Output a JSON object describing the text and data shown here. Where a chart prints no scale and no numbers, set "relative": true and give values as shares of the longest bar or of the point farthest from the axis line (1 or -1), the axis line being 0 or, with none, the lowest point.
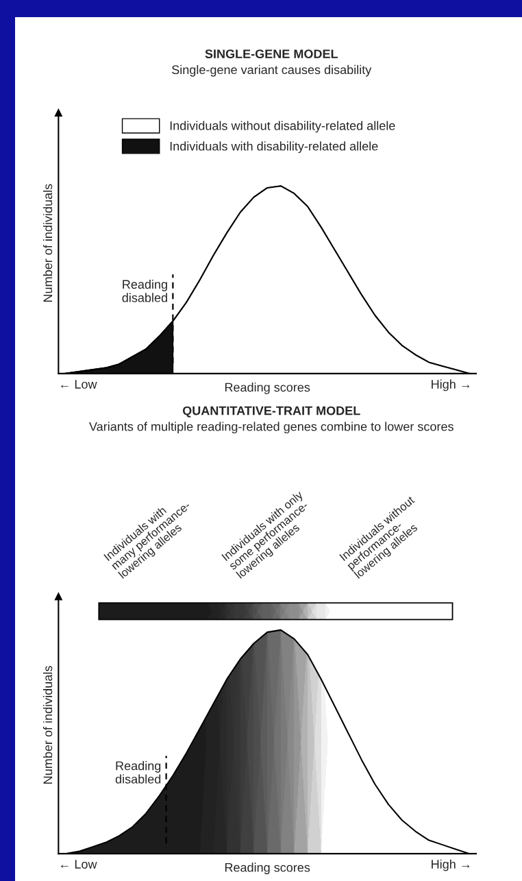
{
  "chart_data": [
    {
      "type": "area",
      "title": "SINGLE-GENE MODEL",
      "subtitle": "Single-gene variant causes disability",
      "ylabel": "Number of individuals",
      "xlabel": "Reading scores",
      "relative": true,
      "legend": "top",
      "categories": [
        null,
        null,
        null,
        null,
        null,
        null,
        null,
        null,
        null,
        null,
        null,
        null,
        null,
        null,
        null,
        null,
        null,
        null,
        null,
        null,
        null,
        null,
        null,
        null,
        null,
        null,
        null,
        null,
        null,
        null,
        null
      ],
      "series": [
        {
          "name": "Individuals without disability-related allele",
          "color": "#ffffff",
          "values": [
            0.0,
            0.01,
            0.02,
            0.03,
            0.05,
            0.09,
            0.13,
            0.2,
            0.28,
            0.38,
            0.5,
            0.63,
            0.75,
            0.86,
            0.94,
            0.99,
            1.0,
            0.96,
            0.89,
            0.78,
            0.66,
            0.54,
            0.42,
            0.31,
            0.22,
            0.15,
            0.1,
            0.06,
            0.04,
            0.02,
            0.0
          ]
        },
        {
          "name": "Individuals with disability-related allele",
          "color": "#111111",
          "values": [
            0.0,
            0.01,
            0.02,
            0.03,
            0.05,
            0.09,
            0.13,
            0.2,
            0.28,
            null,
            null,
            null,
            null,
            null,
            null,
            null,
            null,
            null,
            null,
            null,
            null,
            null,
            null,
            null,
            null,
            null,
            null,
            null,
            null,
            null,
            null
          ]
        }
      ],
      "annotations": [
        "← Low",
        "High →",
        "Reading\ndisabled"
      ]
    },
    {
      "type": "area",
      "title": "QUANTITATIVE-TRAIT MODEL",
      "subtitle": "Variants of multiple reading-related genes combine to lower scores",
      "ylabel": "Number of individuals",
      "xlabel": "Reading scores",
      "relative": true,
      "categories": [
        null,
        null,
        null,
        null,
        null,
        null,
        null,
        null,
        null,
        null,
        null,
        null,
        null,
        null,
        null,
        null,
        null,
        null,
        null,
        null,
        null,
        null,
        null,
        null,
        null,
        null,
        null,
        null,
        null,
        null,
        null
      ],
      "series": [
        {
          "type": "line",
          "color": "#000000",
          "colors": [
            "#111111",
            "#111111",
            "#111111",
            "#111111",
            "#111111",
            "#111111",
            "#111111",
            "#111111",
            "#111111",
            "#111111",
            "#111111",
            "#161616",
            "#1c1c1c",
            "#262626",
            "#333333",
            "#444444",
            "#555555",
            "#666666",
            "#888888",
            "#aaaaaa",
            "#dddddd",
            "#ffffff",
            "#ffffff",
            "#ffffff",
            "#ffffff",
            "#ffffff",
            "#ffffff",
            "#ffffff",
            "#ffffff",
            "#ffffff",
            "#ffffff"
          ],
          "values": [
            0.0,
            0.01,
            0.03,
            0.05,
            0.08,
            0.12,
            0.18,
            0.26,
            0.35,
            0.45,
            0.56,
            0.67,
            0.78,
            0.87,
            0.94,
            0.99,
            1.0,
            0.96,
            0.89,
            0.78,
            0.66,
            0.54,
            0.42,
            0.31,
            0.22,
            0.15,
            0.1,
            0.06,
            0.04,
            0.02,
            0.0
          ]
        }
      ],
      "annotations": [
        "← Low",
        "High →",
        "Reading\ndisabled",
        "Individuals with\nmany performance-\nlowering alleles",
        "Individuals with only\nsome performance-\nlowering alleles",
        "Individuals without\nperformance-\nlowering alleles"
      ]
    }
  ]
}
